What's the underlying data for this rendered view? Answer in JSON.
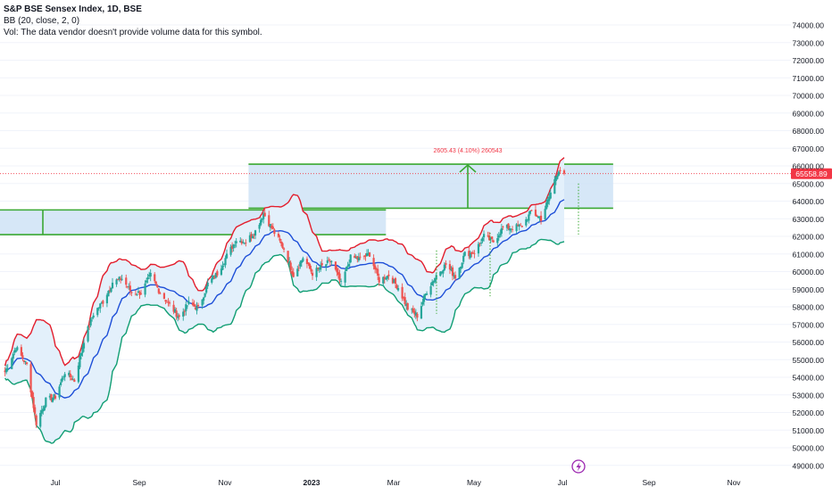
{
  "legend": {
    "title": "S&P BSE Sensex Index, 1D, BSE",
    "indicator": "BB (20, close, 2, 0)",
    "volume_note": "Vol: The data vendor doesn't provide volume data for this symbol."
  },
  "colors": {
    "up": "#26a69a",
    "down": "#ef5350",
    "bb_upper": "#e31e2d",
    "bb_basis": "#1e4fd8",
    "bb_lower": "#119e73",
    "bb_fill": "#e3f0fb",
    "zone_fill": "#cfe3f6",
    "zone_line": "#3aa832",
    "price_badge": "#f23645"
  },
  "chart_data": {
    "type": "candlestick",
    "title": "S&P BSE Sensex Index, 1D, BSE",
    "ylim": [
      48500,
      75500
    ],
    "x_ticks": [
      "Jul",
      "Sep",
      "Nov",
      "2023",
      "Mar",
      "May",
      "Jul",
      "Sep",
      "Nov"
    ],
    "y_ticks": [
      49000,
      50000,
      51000,
      52000,
      53000,
      54000,
      55000,
      56000,
      57000,
      58000,
      59000,
      60000,
      61000,
      62000,
      63000,
      64000,
      65000,
      66000,
      67000,
      68000,
      69000,
      70000,
      71000,
      72000,
      73000,
      74000
    ],
    "y_tick_labels": [
      "49000.00",
      "50000.00",
      "51000.00",
      "52000.00",
      "53000.00",
      "54000.00",
      "55000.00",
      "56000.00",
      "57000.00",
      "58000.00",
      "59000.00",
      "60000.00",
      "61000.00",
      "62000.00",
      "63000.00",
      "64000.00",
      "65000.00",
      "66000.00",
      "67000.00",
      "68000.00",
      "69000.00",
      "70000.00",
      "71000.00",
      "72000.00",
      "73000.00",
      "74000.00"
    ],
    "last_price": 65558.89,
    "last_price_label": "65558.89",
    "series_close": [
      {
        "date": "2022-05-25",
        "close": 54300
      },
      {
        "date": "2022-06-02",
        "close": 55700
      },
      {
        "date": "2022-06-10",
        "close": 54700
      },
      {
        "date": "2022-06-17",
        "close": 51400
      },
      {
        "date": "2022-06-24",
        "close": 52700
      },
      {
        "date": "2022-07-01",
        "close": 52900
      },
      {
        "date": "2022-07-08",
        "close": 54300
      },
      {
        "date": "2022-07-15",
        "close": 53800
      },
      {
        "date": "2022-07-22",
        "close": 56100
      },
      {
        "date": "2022-07-29",
        "close": 57600
      },
      {
        "date": "2022-08-05",
        "close": 58300
      },
      {
        "date": "2022-08-12",
        "close": 59400
      },
      {
        "date": "2022-08-19",
        "close": 59600
      },
      {
        "date": "2022-08-26",
        "close": 58800
      },
      {
        "date": "2022-09-02",
        "close": 58800
      },
      {
        "date": "2022-09-09",
        "close": 59800
      },
      {
        "date": "2022-09-16",
        "close": 58800
      },
      {
        "date": "2022-09-23",
        "close": 58100
      },
      {
        "date": "2022-09-30",
        "close": 57400
      },
      {
        "date": "2022-10-07",
        "close": 58200
      },
      {
        "date": "2022-10-14",
        "close": 57900
      },
      {
        "date": "2022-10-21",
        "close": 59300
      },
      {
        "date": "2022-10-28",
        "close": 59900
      },
      {
        "date": "2022-11-04",
        "close": 60900
      },
      {
        "date": "2022-11-11",
        "close": 61800
      },
      {
        "date": "2022-11-18",
        "close": 61700
      },
      {
        "date": "2022-11-25",
        "close": 62300
      },
      {
        "date": "2022-12-01",
        "close": 63300
      },
      {
        "date": "2022-12-09",
        "close": 62200
      },
      {
        "date": "2022-12-16",
        "close": 61300
      },
      {
        "date": "2022-12-23",
        "close": 59800
      },
      {
        "date": "2022-12-30",
        "close": 60800
      },
      {
        "date": "2023-01-06",
        "close": 59900
      },
      {
        "date": "2023-01-13",
        "close": 60300
      },
      {
        "date": "2023-01-20",
        "close": 60600
      },
      {
        "date": "2023-01-27",
        "close": 59300
      },
      {
        "date": "2023-02-03",
        "close": 60800
      },
      {
        "date": "2023-02-10",
        "close": 60700
      },
      {
        "date": "2023-02-17",
        "close": 61000
      },
      {
        "date": "2023-02-24",
        "close": 59500
      },
      {
        "date": "2023-03-03",
        "close": 59800
      },
      {
        "date": "2023-03-10",
        "close": 59100
      },
      {
        "date": "2023-03-17",
        "close": 57900
      },
      {
        "date": "2023-03-24",
        "close": 57500
      },
      {
        "date": "2023-03-31",
        "close": 58900
      },
      {
        "date": "2023-04-07",
        "close": 59800
      },
      {
        "date": "2023-04-14",
        "close": 60400
      },
      {
        "date": "2023-04-21",
        "close": 59700
      },
      {
        "date": "2023-04-28",
        "close": 61000
      },
      {
        "date": "2023-05-05",
        "close": 61100
      },
      {
        "date": "2023-05-12",
        "close": 62000
      },
      {
        "date": "2023-05-19",
        "close": 61700
      },
      {
        "date": "2023-05-26",
        "close": 62500
      },
      {
        "date": "2023-06-02",
        "close": 62500
      },
      {
        "date": "2023-06-09",
        "close": 62600
      },
      {
        "date": "2023-06-16",
        "close": 63400
      },
      {
        "date": "2023-06-23",
        "close": 63000
      },
      {
        "date": "2023-06-28",
        "close": 64000
      },
      {
        "date": "2023-07-03",
        "close": 65200
      },
      {
        "date": "2023-07-06",
        "close": 65800
      },
      {
        "date": "2023-07-10",
        "close": 65559
      }
    ],
    "annotations": {
      "measure_label": "2605.43 (4.10%) 260543",
      "upper_zone": {
        "from_date": "2022-11-20",
        "to_date": "2023-08-15",
        "low": 63600,
        "high": 66100
      },
      "lower_zone": {
        "from_date": "2022-05-20",
        "to_date": "2023-03-01",
        "low": 62100,
        "high": 63500
      }
    }
  }
}
